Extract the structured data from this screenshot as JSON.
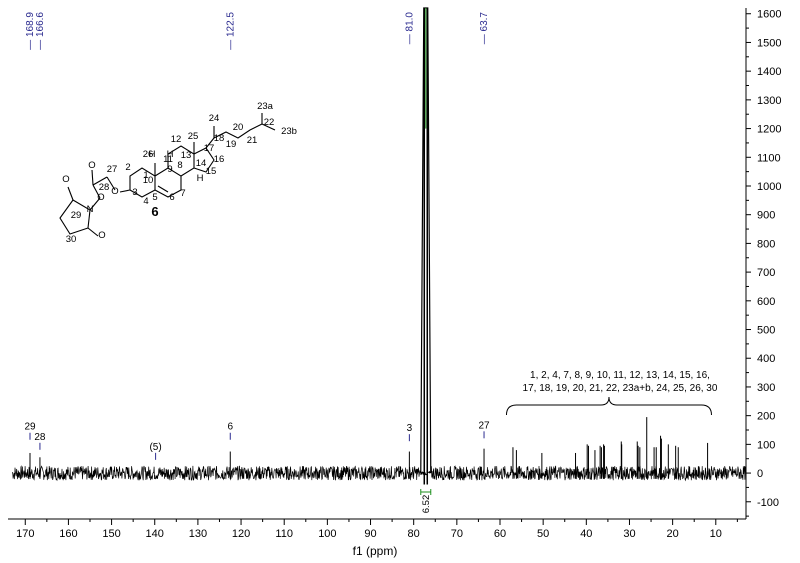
{
  "chart_data": {
    "type": "line",
    "xlabel": "f1 (ppm)",
    "ylabel": "",
    "xlim": [
      174,
      3
    ],
    "ylim": [
      -160,
      1620
    ],
    "x_ticks": [
      170,
      160,
      150,
      140,
      130,
      120,
      110,
      100,
      90,
      80,
      70,
      60,
      50,
      40,
      30,
      20,
      10
    ],
    "y_ticks": [
      -100,
      0,
      100,
      200,
      300,
      400,
      500,
      600,
      700,
      800,
      900,
      1000,
      1100,
      1200,
      1300,
      1400,
      1500,
      1600
    ],
    "peak_labels": [
      "168.9",
      "166.6",
      "122.5",
      "81.0",
      "63.7"
    ],
    "peak_label_positions": [
      168.9,
      166.6,
      122.5,
      81.0,
      63.7
    ],
    "assignments": [
      {
        "label": "29",
        "ppm": 168.9,
        "height": 130
      },
      {
        "label": "28",
        "ppm": 166.6,
        "height": 95
      },
      {
        "label": "(5)",
        "ppm": 139.8,
        "height": 60
      },
      {
        "label": "6",
        "ppm": 122.5,
        "height": 130
      },
      {
        "label": "3",
        "ppm": 81.0,
        "height": 125
      },
      {
        "label": "27",
        "ppm": 63.7,
        "height": 135
      }
    ],
    "solvent_peak": {
      "ppm": 77.2,
      "height": 1620
    },
    "integral_label": "6.52",
    "peaks": [
      {
        "ppm": 168.9,
        "height": 70
      },
      {
        "ppm": 166.6,
        "height": 55
      },
      {
        "ppm": 122.5,
        "height": 75
      },
      {
        "ppm": 81.0,
        "height": 75
      },
      {
        "ppm": 63.7,
        "height": 85
      },
      {
        "ppm": 57.0,
        "height": 90
      },
      {
        "ppm": 56.2,
        "height": 80
      },
      {
        "ppm": 50.3,
        "height": 70
      },
      {
        "ppm": 42.5,
        "height": 70
      },
      {
        "ppm": 39.8,
        "height": 100
      },
      {
        "ppm": 39.5,
        "height": 95
      },
      {
        "ppm": 38.0,
        "height": 80
      },
      {
        "ppm": 36.8,
        "height": 95
      },
      {
        "ppm": 36.5,
        "height": 90
      },
      {
        "ppm": 36.0,
        "height": 100
      },
      {
        "ppm": 35.8,
        "height": 95
      },
      {
        "ppm": 31.9,
        "height": 110
      },
      {
        "ppm": 31.8,
        "height": 100
      },
      {
        "ppm": 28.2,
        "height": 110
      },
      {
        "ppm": 28.0,
        "height": 95
      },
      {
        "ppm": 27.6,
        "height": 90
      },
      {
        "ppm": 26.0,
        "height": 195
      },
      {
        "ppm": 24.3,
        "height": 90
      },
      {
        "ppm": 23.8,
        "height": 90
      },
      {
        "ppm": 22.8,
        "height": 130
      },
      {
        "ppm": 22.6,
        "height": 120
      },
      {
        "ppm": 21.0,
        "height": 100
      },
      {
        "ppm": 19.3,
        "height": 95
      },
      {
        "ppm": 18.7,
        "height": 90
      },
      {
        "ppm": 11.9,
        "height": 105
      }
    ],
    "noise_amplitude": 25,
    "group_note": "1, 2, 4, 7, 8, 9, 10, 11, 12, 13, 14, 15, 16, 17, 18, 19, 20, 21, 22, 23a+b, 24, 25, 26, 30",
    "group_note_line1": "1, 2, 4, 7, 8, 9, 10, 11, 12, 13, 14, 15, 16,",
    "group_note_line2": "17, 18, 19, 20, 21, 22, 23a+b, 24, 25, 26, 30",
    "bracket_range": [
      58.5,
      11.0
    ],
    "compound_label": "6",
    "structure_labels": [
      "1",
      "2",
      "3",
      "4",
      "5",
      "6",
      "7",
      "8",
      "9",
      "10",
      "11",
      "12",
      "13",
      "14",
      "15",
      "16",
      "17",
      "18",
      "19",
      "20",
      "21",
      "22",
      "23a",
      "23b",
      "24",
      "25",
      "26",
      "27",
      "28",
      "29",
      "30",
      "H",
      "H",
      "H",
      "O",
      "O",
      "O",
      "O",
      "O",
      "N"
    ],
    "colors": {
      "spectrum": "#000000",
      "peak_label": "#2a2a8f",
      "solvent_core": "#1e8f1e",
      "integral": "#1e8f1e"
    }
  }
}
